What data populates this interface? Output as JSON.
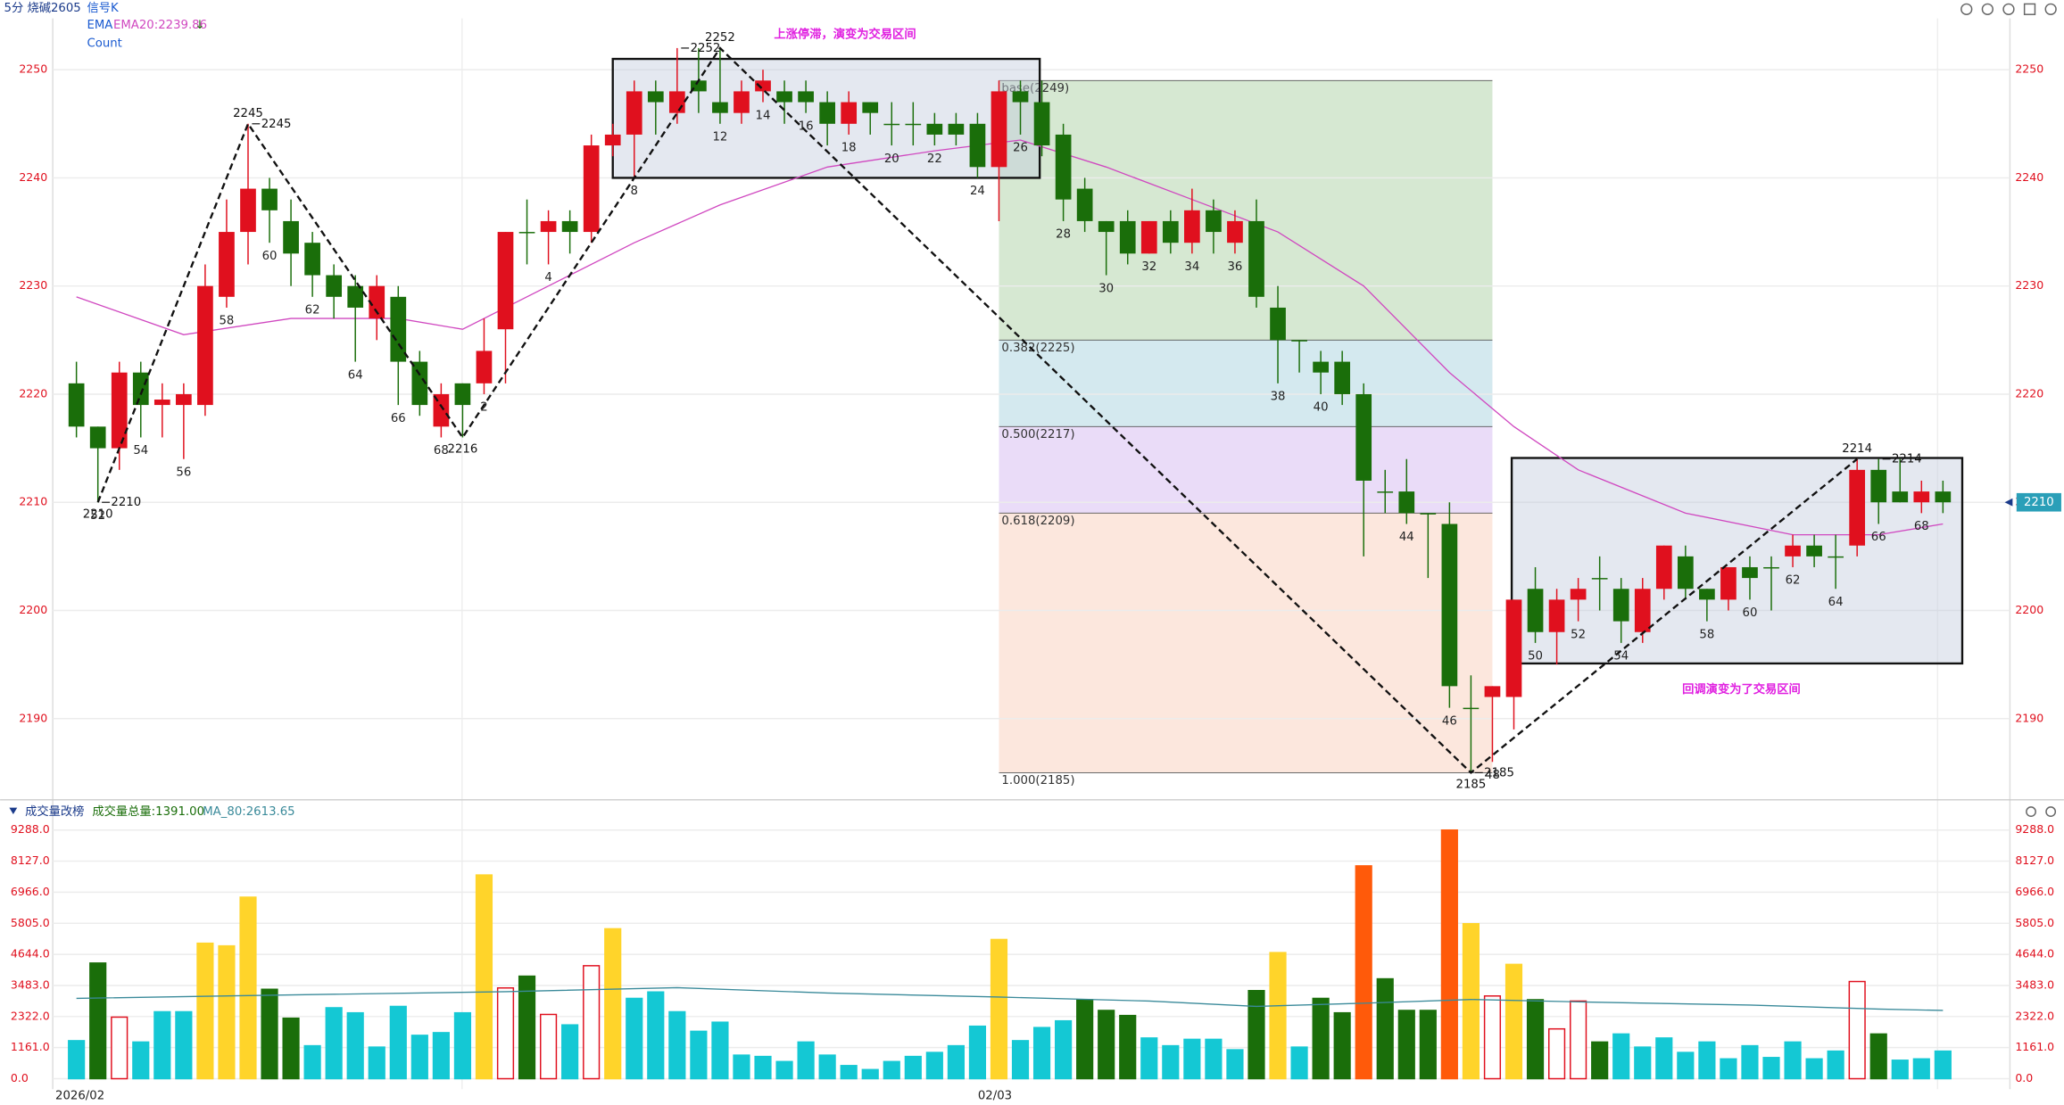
{
  "header": {
    "symbol": "5分 烧碱2605",
    "signal": "信号K",
    "ema_name": "EMA",
    "ema_value": "EMA20:2239.86",
    "count": "Count"
  },
  "chart_data": [
    {
      "type": "candlestick",
      "open": [
        2221,
        2217,
        2215,
        2222,
        2219,
        2219,
        2219,
        2229,
        2235,
        2239,
        2236,
        2234,
        2231,
        2230,
        2227,
        2229,
        2223,
        2217,
        2221,
        2221,
        2226,
        2235,
        2235,
        2236,
        2235,
        2243,
        2244,
        2248,
        2246,
        2249,
        2247,
        2246,
        2248,
        2248,
        2248,
        2247,
        2245,
        2247,
        2245,
        2245,
        2245,
        2245,
        2245,
        2241,
        2248,
        2247,
        2244,
        2239,
        2236,
        2236,
        2233,
        2236,
        2234,
        2237,
        2234,
        2236,
        2228,
        2225,
        2223,
        2223,
        2220,
        2211,
        2211,
        2209,
        2208,
        2191,
        2192,
        2192,
        2202,
        2198,
        2201,
        2203,
        2202,
        2198,
        2202,
        2205,
        2202,
        2201,
        2204,
        2204,
        2205,
        2206,
        2205,
        2206,
        2213,
        2211,
        2210,
        2211
      ],
      "high": [
        2223,
        2217,
        2223,
        2223,
        2221,
        2221,
        2232,
        2238,
        2245,
        2240,
        2238,
        2235,
        2232,
        2231,
        2231,
        2230,
        2224,
        2221,
        2221,
        2227,
        2235,
        2238,
        2237,
        2237,
        2244,
        2245,
        2249,
        2249,
        2252,
        2252,
        2252,
        2249,
        2250,
        2249,
        2249,
        2248,
        2248,
        2247,
        2247,
        2247,
        2246,
        2246,
        2246,
        2249,
        2249,
        2249,
        2245,
        2240,
        2236,
        2237,
        2236,
        2237,
        2239,
        2238,
        2237,
        2238,
        2230,
        2225,
        2224,
        2224,
        2221,
        2213,
        2214,
        2209,
        2210,
        2194,
        2193,
        2201,
        2204,
        2202,
        2203,
        2205,
        2203,
        2203,
        2206,
        2206,
        2202,
        2204,
        2205,
        2205,
        2207,
        2207,
        2207,
        2214,
        2214,
        2214,
        2212,
        2212
      ],
      "low": [
        2216,
        2210,
        2213,
        2216,
        2216,
        2214,
        2218,
        2228,
        2232,
        2234,
        2230,
        2229,
        2227,
        2223,
        2225,
        2219,
        2218,
        2216,
        2216,
        2220,
        2221,
        2232,
        2232,
        2233,
        2234,
        2242,
        2240,
        2244,
        2245,
        2246,
        2245,
        2245,
        2247,
        2245,
        2246,
        2243,
        2244,
        2244,
        2243,
        2243,
        2243,
        2243,
        2240,
        2236,
        2244,
        2242,
        2236,
        2235,
        2231,
        2232,
        2233,
        2233,
        2233,
        2233,
        2233,
        2228,
        2221,
        2222,
        2220,
        2219,
        2205,
        2209,
        2208,
        2203,
        2191,
        2185,
        2186,
        2189,
        2197,
        2195,
        2199,
        2200,
        2197,
        2197,
        2201,
        2201,
        2199,
        2200,
        2201,
        2200,
        2204,
        2204,
        2202,
        2205,
        2208,
        2210,
        2209,
        2209
      ],
      "close": [
        2217,
        2215,
        2222,
        2219,
        2219.5,
        2220,
        2230,
        2235,
        2239,
        2237,
        2233,
        2231,
        2229,
        2228,
        2230,
        2223,
        2219,
        2220,
        2219,
        2224,
        2235,
        2235,
        2236,
        2235,
        2243,
        2244,
        2248,
        2247,
        2248,
        2248,
        2246,
        2248,
        2249,
        2247,
        2247,
        2245,
        2247,
        2246,
        2245,
        2245,
        2244,
        2244,
        2241,
        2248,
        2247,
        2243,
        2238,
        2236,
        2235,
        2233,
        2236,
        2234,
        2237,
        2235,
        2236,
        2229,
        2225,
        2225,
        2222,
        2220,
        2212,
        2211,
        2209,
        2209,
        2193,
        2191,
        2193,
        2201,
        2198,
        2201,
        2202,
        2203,
        2199,
        2202,
        2206,
        2202,
        2201,
        2204,
        2203,
        2204,
        2206,
        2205,
        2205,
        2213,
        2210,
        2210,
        2211,
        2210
      ],
      "ylim": [
        2183.1,
        2254.5
      ],
      "yticks": [
        2190,
        2200,
        2210,
        2220,
        2230,
        2240,
        2250
      ],
      "grid": true,
      "up_color": "#e0101e",
      "down_color": "#1a6e0a",
      "ema": {
        "name": "EMA20",
        "color": "#d048c0",
        "x": [
          0,
          5,
          10,
          15,
          18,
          22,
          26,
          30,
          35,
          40,
          44,
          48,
          52,
          56,
          60,
          64,
          67,
          70,
          75,
          80,
          84,
          87
        ],
        "values": [
          2229,
          2225.5,
          2227,
          2227,
          2226,
          2230,
          2234,
          2237.5,
          2241,
          2242.5,
          2243.5,
          2241,
          2238,
          2235,
          2230,
          2222,
          2217,
          2213,
          2209,
          2207,
          2207,
          2208
        ]
      },
      "zigzag": {
        "bars": [
          1,
          8,
          18,
          30,
          65,
          83
        ],
        "values": [
          2210,
          2245,
          2216,
          2252,
          2185,
          2214
        ]
      },
      "extreme_marks": [
        {
          "bar": 1,
          "value": 2210
        },
        {
          "bar": 8,
          "value": 2245
        },
        {
          "bar": 28,
          "value": 2252
        },
        {
          "bar": 65,
          "value": 2185
        },
        {
          "bar": 84,
          "value": 2214
        }
      ],
      "count_labels": [
        {
          "bar": 1,
          "label": "52"
        },
        {
          "bar": 3,
          "label": "54"
        },
        {
          "bar": 5,
          "label": "56"
        },
        {
          "bar": 7,
          "label": "58"
        },
        {
          "bar": 9,
          "label": "60"
        },
        {
          "bar": 11,
          "label": "62"
        },
        {
          "bar": 13,
          "label": "64"
        },
        {
          "bar": 15,
          "label": "66"
        },
        {
          "bar": 17,
          "label": "68"
        },
        {
          "bar": 19,
          "label": "2"
        },
        {
          "bar": 22,
          "label": "4"
        },
        {
          "bar": 26,
          "label": "8"
        },
        {
          "bar": 30,
          "label": "12"
        },
        {
          "bar": 32,
          "label": "14"
        },
        {
          "bar": 34,
          "label": "16"
        },
        {
          "bar": 36,
          "label": "18"
        },
        {
          "bar": 38,
          "label": "20"
        },
        {
          "bar": 40,
          "label": "22"
        },
        {
          "bar": 42,
          "label": "24"
        },
        {
          "bar": 44,
          "label": "26"
        },
        {
          "bar": 46,
          "label": "28"
        },
        {
          "bar": 48,
          "label": "30"
        },
        {
          "bar": 50,
          "label": "32"
        },
        {
          "bar": 52,
          "label": "34"
        },
        {
          "bar": 54,
          "label": "36"
        },
        {
          "bar": 56,
          "label": "38"
        },
        {
          "bar": 58,
          "label": "40"
        },
        {
          "bar": 62,
          "label": "44"
        },
        {
          "bar": 64,
          "label": "46"
        },
        {
          "bar": 66,
          "label": "48"
        },
        {
          "bar": 68,
          "label": "50"
        },
        {
          "bar": 70,
          "label": "52"
        },
        {
          "bar": 72,
          "label": "54"
        },
        {
          "bar": 76,
          "label": "58"
        },
        {
          "bar": 78,
          "label": "60"
        },
        {
          "bar": 80,
          "label": "62"
        },
        {
          "bar": 82,
          "label": "64"
        },
        {
          "bar": 84,
          "label": "66"
        },
        {
          "bar": 86,
          "label": "68"
        }
      ],
      "ranges": [
        {
          "from": 25,
          "to": 44.9,
          "high": 2251,
          "low": 2240
        },
        {
          "from": 66.9,
          "to": 87.9,
          "high": 2214.1,
          "low": 2195.1
        }
      ],
      "fib": {
        "from": 43,
        "to": 66,
        "levels": [
          {
            "value": 2249,
            "label": "base(2249)"
          },
          {
            "value": 2225,
            "label": "0.382(2225)"
          },
          {
            "value": 2217,
            "label": "0.500(2217)"
          },
          {
            "value": 2209,
            "label": "0.618(2209)"
          },
          {
            "value": 2185,
            "label": "1.000(2185)"
          }
        ],
        "colors": [
          "#d6e8d2",
          "#d4e9ef",
          "#eadcf8",
          "#fce7dd"
        ]
      },
      "annotations": [
        "上涨停滞，演变为交易区间",
        "回调演变为了交易区间"
      ],
      "annotation_color": "#e020e0"
    },
    {
      "type": "bar",
      "title": "成交量改榜",
      "legend": [
        "成交量总量:1391.00",
        "MA_80:2613.65"
      ],
      "categories": [
        "2026/02",
        null,
        null,
        null,
        null,
        null,
        null,
        null,
        null,
        null,
        null,
        null,
        null,
        null,
        null,
        null,
        null,
        null,
        null,
        null,
        null,
        null,
        null,
        null,
        null,
        null,
        null,
        null,
        null,
        null,
        null,
        null,
        null,
        null,
        null,
        null,
        null,
        null,
        null,
        null,
        null,
        null,
        null,
        "02/03",
        null,
        null,
        null,
        null,
        null,
        null,
        null,
        null,
        null,
        null,
        null,
        null,
        null,
        null,
        null,
        null,
        null,
        null,
        null,
        null,
        null,
        null,
        null,
        null,
        null,
        null,
        null,
        null,
        null,
        null,
        null,
        null,
        null,
        null,
        null,
        null,
        null,
        null,
        null,
        null,
        null,
        null,
        null,
        null
      ],
      "values": [
        1420,
        4320,
        2300,
        1370,
        2500,
        2500,
        5060,
        4960,
        6780,
        3340,
        2260,
        1230,
        2650,
        2460,
        1180,
        2700,
        1620,
        1720,
        2460,
        7610,
        3390,
        3830,
        2400,
        2010,
        4220,
        5600,
        3000,
        3240,
        2500,
        1770,
        2110,
        880,
        830,
        640,
        1370,
        880,
        490,
        340,
        640,
        830,
        980,
        1230,
        1960,
        5200,
        1420,
        1910,
        2160,
        2950,
        2550,
        2360,
        1520,
        1230,
        1470,
        1470,
        1080,
        3290,
        4710,
        1180,
        3000,
        2460,
        7950,
        3730,
        2550,
        2550,
        9288,
        5790,
        3090,
        4270,
        2950,
        1860,
        2900,
        1370,
        1670,
        1180,
        1520,
        980,
        1370,
        740,
        1230,
        790,
        1370,
        740,
        1030,
        3630,
        1670,
        690,
        740,
        1030
      ],
      "styles": [
        "c",
        "g",
        "h",
        "c",
        "c",
        "c",
        "y",
        "y",
        "y",
        "g",
        "g",
        "c",
        "c",
        "c",
        "c",
        "c",
        "c",
        "c",
        "c",
        "y",
        "h",
        "g",
        "h",
        "c",
        "h",
        "y",
        "c",
        "c",
        "c",
        "c",
        "c",
        "c",
        "c",
        "c",
        "c",
        "c",
        "c",
        "c",
        "c",
        "c",
        "c",
        "c",
        "c",
        "y",
        "c",
        "c",
        "c",
        "g",
        "g",
        "g",
        "c",
        "c",
        "c",
        "c",
        "c",
        "g",
        "y",
        "c",
        "g",
        "g",
        "o",
        "g",
        "g",
        "g",
        "o",
        "y",
        "h",
        "y",
        "g",
        "h",
        "h",
        "g",
        "c",
        "c",
        "c",
        "c",
        "c",
        "c",
        "c",
        "c",
        "c",
        "c",
        "c",
        "h",
        "g",
        "c",
        "c",
        "c"
      ],
      "palette": {
        "c": {
          "fill": "#14c8d4",
          "stroke": "#14c8d4"
        },
        "g": {
          "fill": "#1a6e0a",
          "stroke": "#1a6e0a"
        },
        "h": {
          "fill": "#ffffff",
          "stroke": "#e0101e"
        },
        "y": {
          "fill": "#ffd42a",
          "stroke": "#ffd42a"
        },
        "o": {
          "fill": "#ff5a0a",
          "stroke": "#ff5a0a"
        }
      },
      "ma": {
        "name": "MA_80",
        "color": "#3a8a9a",
        "x": [
          0,
          10,
          20,
          28,
          35,
          43,
          50,
          55,
          60,
          65,
          70,
          78,
          84,
          87
        ],
        "values": [
          3000,
          3130,
          3250,
          3400,
          3200,
          3050,
          2900,
          2700,
          2820,
          2960,
          2870,
          2750,
          2600,
          2550
        ]
      },
      "ylim": [
        -393,
        9730
      ],
      "yticks": [
        {
          "value": 0,
          "label": "0.0"
        },
        {
          "value": 1161,
          "label": "1161.0"
        },
        {
          "value": 2322,
          "label": "2322.0"
        },
        {
          "value": 3483,
          "label": "3483.0"
        },
        {
          "value": 4644,
          "label": "4644.0"
        },
        {
          "value": 5805,
          "label": "5805.0"
        },
        {
          "value": 6966,
          "label": "6966.0"
        },
        {
          "value": 8127,
          "label": "8127.0"
        },
        {
          "value": 9288,
          "label": "9288.0"
        }
      ],
      "grid": true
    }
  ]
}
